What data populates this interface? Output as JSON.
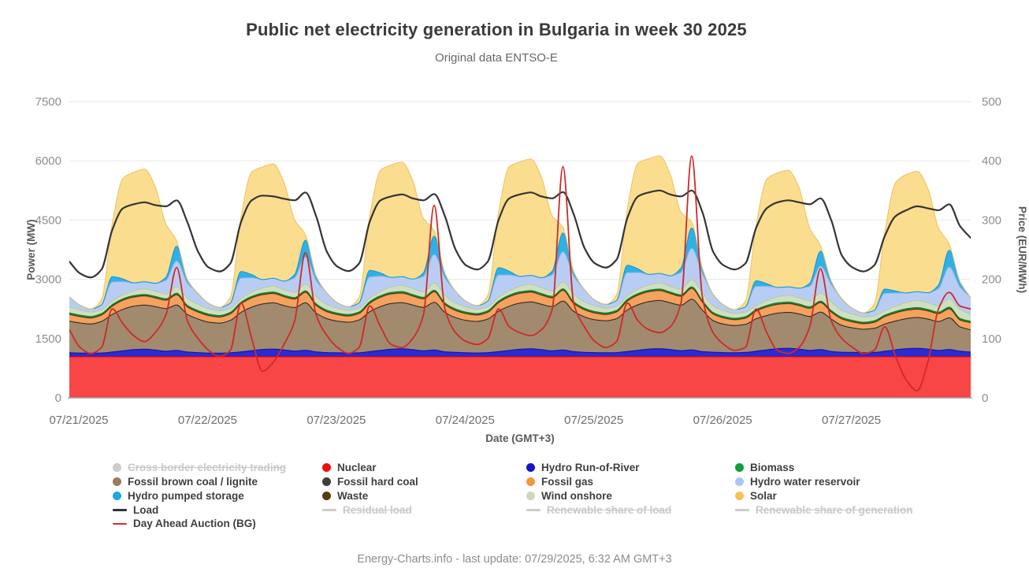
{
  "header": {
    "title": "Public net electricity generation in Bulgaria in week 30 2025",
    "subtitle": "Original data ENTSO-E"
  },
  "footer": {
    "text": "Energy-Charts.info - last update: 07/29/2025, 6:32 AM GMT+3"
  },
  "legend": {
    "columns": [
      [
        {
          "label": "Cross border electricity trading",
          "marker": "circle",
          "color": "#cccccc",
          "disabled": true
        },
        {
          "label": "Fossil brown coal / lignite",
          "marker": "circle",
          "color": "#9c7b5f",
          "disabled": false
        },
        {
          "label": "Hydro pumped storage",
          "marker": "circle",
          "color": "#1ea7e4",
          "disabled": false
        },
        {
          "label": "Load",
          "marker": "line",
          "color": "#343434",
          "disabled": false
        },
        {
          "label": "Day Ahead Auction (BG)",
          "marker": "line",
          "color": "#d32f2a",
          "disabled": false
        }
      ],
      [
        {
          "label": "Nuclear",
          "marker": "circle",
          "color": "#f20d0d",
          "disabled": false
        },
        {
          "label": "Fossil hard coal",
          "marker": "circle",
          "color": "#3d3d3d",
          "disabled": false
        },
        {
          "label": "Waste",
          "marker": "circle",
          "color": "#5c3a11",
          "disabled": false
        },
        {
          "label": "Residual load",
          "marker": "line",
          "color": "#cccccc",
          "disabled": true
        }
      ],
      [
        {
          "label": "Hydro Run-of-River",
          "marker": "circle",
          "color": "#1414c8",
          "disabled": false
        },
        {
          "label": "Fossil gas",
          "marker": "circle",
          "color": "#f4963f",
          "disabled": false
        },
        {
          "label": "Wind onshore",
          "marker": "circle",
          "color": "#cbd9ba",
          "disabled": false
        },
        {
          "label": "Renewable share of load",
          "marker": "line",
          "color": "#cccccc",
          "disabled": true
        }
      ],
      [
        {
          "label": "Biomass",
          "marker": "circle",
          "color": "#119e38",
          "disabled": false
        },
        {
          "label": "Hydro water reservoir",
          "marker": "circle",
          "color": "#abc6f4",
          "disabled": false
        },
        {
          "label": "Solar",
          "marker": "circle",
          "color": "#f6c353",
          "disabled": false
        },
        {
          "label": "Renewable share of generation",
          "marker": "line",
          "color": "#cccccc",
          "disabled": true
        }
      ]
    ]
  },
  "chart_data": {
    "type": "area",
    "title": "Public net electricity generation in Bulgaria in week 30 2025",
    "x_unit": "hours",
    "x_step_hours": 2,
    "x_range_hours": [
      0,
      168
    ],
    "xlabel": "Date (GMT+3)",
    "x_ticks": [
      "07/21/2025",
      "07/22/2025",
      "07/23/2025",
      "07/24/2025",
      "07/25/2025",
      "07/26/2025",
      "07/27/2025"
    ],
    "power_axis": {
      "label": "Power (MW)",
      "max": 7500,
      "ticks": [
        0,
        1500,
        3000,
        4500,
        6000,
        7500
      ]
    },
    "price_axis": {
      "label": "Price (EUR/MWh)",
      "max": 500,
      "ticks": [
        0,
        100,
        200,
        300,
        400,
        500
      ]
    },
    "grid": "horizontal-only",
    "series": [
      {
        "name": "Nuclear",
        "color": "#f84545",
        "line": "#e60000",
        "constant": 1040
      },
      {
        "name": "Hydro Run-of-River",
        "color": "#2b2bd0",
        "line": "#0d0db4",
        "values": [
          100,
          95,
          90,
          95,
          120,
          150,
          180,
          190,
          170,
          140,
          160,
          120,
          105,
          95,
          90,
          100,
          125,
          155,
          185,
          195,
          175,
          145,
          165,
          125,
          105,
          100,
          95,
          100,
          130,
          160,
          190,
          200,
          180,
          150,
          170,
          125,
          110,
          100,
          95,
          105,
          130,
          160,
          190,
          200,
          180,
          150,
          170,
          130,
          110,
          105,
          100,
          105,
          135,
          165,
          195,
          205,
          185,
          155,
          175,
          130,
          115,
          105,
          100,
          110,
          140,
          175,
          205,
          215,
          195,
          160,
          180,
          135,
          115,
          110,
          105,
          110,
          140,
          175,
          205,
          215,
          195,
          160,
          185,
          140,
          120
        ]
      },
      {
        "name": "Fossil brown coal / lignite",
        "color": "#a28a6e",
        "line": "#6f5b49",
        "values": [
          800,
          760,
          740,
          800,
          950,
          1050,
          1100,
          1120,
          1100,
          1080,
          1150,
          950,
          850,
          780,
          760,
          820,
          1000,
          1100,
          1150,
          1170,
          1120,
          1100,
          1200,
          980,
          860,
          800,
          780,
          830,
          1010,
          1110,
          1160,
          1170,
          1130,
          1100,
          1210,
          1000,
          880,
          820,
          800,
          850,
          1020,
          1120,
          1170,
          1190,
          1150,
          1120,
          1240,
          1020,
          900,
          830,
          810,
          860,
          1050,
          1150,
          1200,
          1220,
          1180,
          1150,
          1280,
          1050,
          800,
          720,
          690,
          710,
          820,
          870,
          900,
          910,
          890,
          860,
          950,
          820,
          680,
          620,
          590,
          610,
          690,
          730,
          760,
          780,
          760,
          730,
          800,
          620,
          560
        ]
      },
      {
        "name": "Fossil hard coal",
        "color": "#3d3d3d",
        "line": "#2a2a2a",
        "constant": 0
      },
      {
        "name": "Fossil gas",
        "color": "#f5a25f",
        "line": "#e0833a",
        "values": [
          160,
          150,
          140,
          150,
          200,
          220,
          220,
          220,
          210,
          200,
          250,
          180,
          165,
          155,
          145,
          155,
          205,
          225,
          225,
          225,
          215,
          205,
          255,
          185,
          165,
          155,
          145,
          155,
          205,
          225,
          230,
          230,
          215,
          205,
          255,
          185,
          170,
          160,
          150,
          160,
          210,
          230,
          235,
          235,
          220,
          210,
          260,
          190,
          170,
          160,
          150,
          160,
          215,
          235,
          240,
          240,
          225,
          215,
          265,
          190,
          155,
          145,
          135,
          145,
          185,
          205,
          210,
          210,
          200,
          195,
          230,
          165,
          150,
          140,
          130,
          140,
          175,
          195,
          200,
          200,
          195,
          190,
          220,
          160,
          170
        ]
      },
      {
        "name": "Waste",
        "color": "#5c3a11",
        "line": "#4a2e0c",
        "constant": 15
      },
      {
        "name": "Biomass",
        "color": "#119e38",
        "line": "#0c7c2b",
        "constant": 35
      },
      {
        "name": "Wind onshore",
        "color": "#cfdfc2",
        "line": "#b5c9a3",
        "values": [
          150,
          130,
          110,
          100,
          90,
          100,
          120,
          140,
          130,
          120,
          160,
          180,
          160,
          140,
          120,
          100,
          90,
          105,
          130,
          150,
          140,
          130,
          170,
          190,
          145,
          125,
          105,
          95,
          90,
          110,
          140,
          160,
          150,
          140,
          180,
          200,
          150,
          130,
          110,
          100,
          95,
          110,
          140,
          160,
          150,
          135,
          175,
          195,
          160,
          140,
          120,
          105,
          95,
          110,
          135,
          155,
          145,
          135,
          180,
          200,
          170,
          150,
          130,
          115,
          105,
          120,
          150,
          170,
          160,
          150,
          200,
          220,
          180,
          160,
          140,
          125,
          115,
          130,
          160,
          180,
          170,
          160,
          210,
          230,
          170
        ]
      },
      {
        "name": "Hydro water reservoir",
        "color": "#b9cdf4",
        "line": "#9cb7e8",
        "values": [
          250,
          120,
          80,
          120,
          480,
          330,
          200,
          180,
          200,
          340,
          650,
          380,
          270,
          130,
          85,
          130,
          520,
          360,
          215,
          195,
          215,
          365,
          680,
          400,
          290,
          135,
          90,
          135,
          530,
          380,
          240,
          215,
          240,
          385,
          720,
          430,
          295,
          140,
          90,
          140,
          560,
          400,
          250,
          225,
          250,
          405,
          760,
          450,
          310,
          145,
          95,
          145,
          580,
          420,
          265,
          240,
          265,
          425,
          790,
          470,
          290,
          135,
          90,
          130,
          480,
          360,
          240,
          215,
          240,
          365,
          680,
          430,
          290,
          140,
          95,
          135,
          430,
          330,
          240,
          220,
          250,
          430,
          800,
          560,
          420
        ]
      },
      {
        "name": "Hydro pumped storage",
        "color": "#2fb1e8",
        "line": "#0f97d4",
        "values": [
          0,
          0,
          0,
          0,
          140,
          70,
          0,
          0,
          0,
          80,
          380,
          90,
          0,
          0,
          0,
          0,
          170,
          85,
          0,
          0,
          0,
          90,
          430,
          110,
          0,
          0,
          0,
          0,
          175,
          85,
          0,
          0,
          0,
          95,
          470,
          120,
          0,
          0,
          0,
          0,
          190,
          95,
          0,
          0,
          0,
          100,
          480,
          120,
          0,
          0,
          0,
          0,
          195,
          95,
          0,
          0,
          0,
          115,
          520,
          140,
          0,
          0,
          0,
          0,
          145,
          70,
          0,
          0,
          0,
          80,
          380,
          90,
          0,
          0,
          0,
          0,
          115,
          55,
          0,
          0,
          0,
          95,
          430,
          140,
          0
        ]
      },
      {
        "name": "Solar",
        "color": "#fadd8e",
        "line": "#eec263",
        "values": [
          0,
          0,
          0,
          140,
          1350,
          2550,
          2800,
          2850,
          2450,
          1350,
          140,
          0,
          0,
          0,
          0,
          145,
          1380,
          2600,
          2850,
          2900,
          2500,
          1380,
          145,
          0,
          0,
          0,
          0,
          145,
          1380,
          2600,
          2850,
          2900,
          2500,
          1380,
          145,
          0,
          0,
          0,
          0,
          150,
          1400,
          2650,
          2900,
          2950,
          2550,
          1400,
          150,
          0,
          0,
          0,
          0,
          150,
          1420,
          2680,
          2930,
          2980,
          2570,
          1420,
          150,
          0,
          0,
          0,
          0,
          150,
          1400,
          2650,
          2900,
          2950,
          2550,
          1400,
          150,
          0,
          0,
          0,
          0,
          155,
          1450,
          2750,
          3000,
          3050,
          2650,
          1450,
          155,
          0,
          0
        ]
      }
    ],
    "lines": [
      {
        "name": "Load",
        "axis": "power",
        "color": "#343434",
        "width": 2.2,
        "values": [
          3450,
          3150,
          3050,
          3250,
          4250,
          4800,
          4900,
          4950,
          4880,
          4850,
          5000,
          4450,
          3700,
          3300,
          3200,
          3400,
          4450,
          5000,
          5120,
          5100,
          5040,
          5000,
          5200,
          4600,
          3700,
          3320,
          3210,
          3400,
          4460,
          5000,
          5100,
          5150,
          5050,
          5000,
          5160,
          4600,
          3750,
          3350,
          3250,
          3450,
          4500,
          5050,
          5150,
          5200,
          5100,
          5050,
          5210,
          4650,
          3800,
          3400,
          3300,
          3500,
          4550,
          5100,
          5200,
          5250,
          5150,
          5100,
          5250,
          4700,
          3700,
          3350,
          3250,
          3400,
          4300,
          4800,
          4950,
          5000,
          4950,
          4900,
          5050,
          4500,
          3600,
          3300,
          3200,
          3350,
          4100,
          4600,
          4750,
          4850,
          4800,
          4750,
          4900,
          4350,
          4050
        ]
      },
      {
        "name": "Day Ahead Auction (BG)",
        "axis": "price",
        "color": "#cf2a27",
        "width": 1.8,
        "values": [
          115,
          85,
          75,
          85,
          150,
          125,
          105,
          95,
          110,
          140,
          220,
          130,
          100,
          80,
          70,
          80,
          160,
          100,
          45,
          60,
          90,
          130,
          245,
          140,
          105,
          85,
          75,
          85,
          155,
          120,
          90,
          85,
          100,
          140,
          325,
          150,
          110,
          95,
          90,
          100,
          150,
          120,
          110,
          105,
          115,
          150,
          390,
          160,
          120,
          95,
          85,
          95,
          160,
          130,
          115,
          110,
          120,
          160,
          408,
          170,
          110,
          90,
          80,
          85,
          150,
          110,
          80,
          75,
          85,
          120,
          218,
          130,
          100,
          85,
          75,
          80,
          120,
          70,
          30,
          12,
          60,
          150,
          178,
          155,
          150
        ]
      }
    ]
  }
}
